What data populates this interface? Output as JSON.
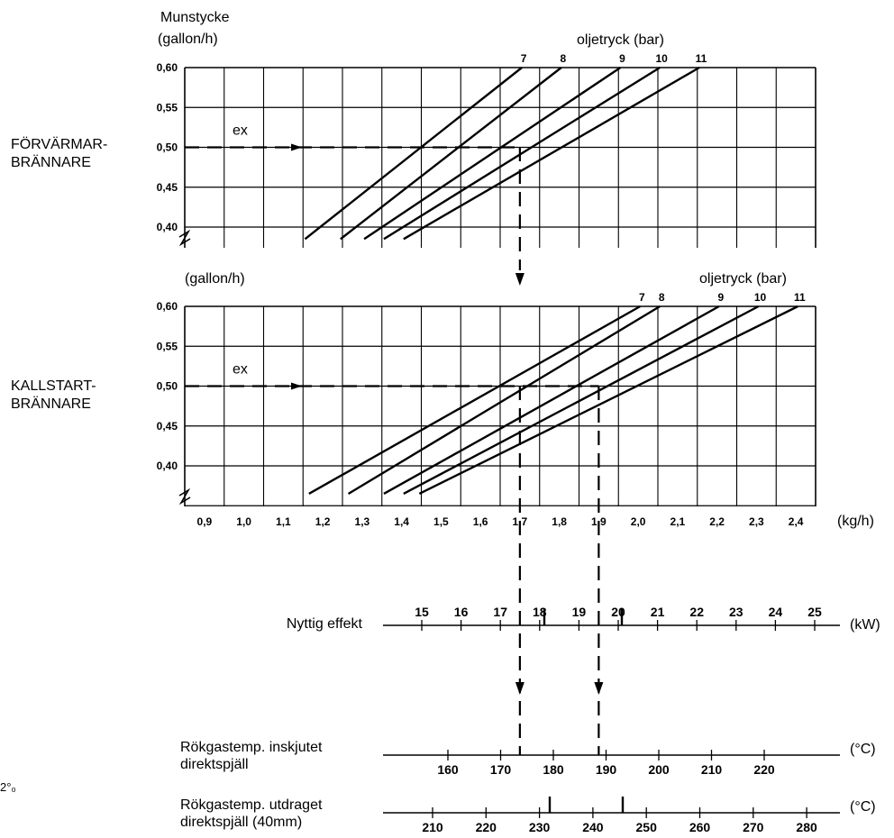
{
  "chart_data": {
    "type": "line",
    "panels": [
      {
        "id": "preheater",
        "axis_title_1": "Munstycke",
        "axis_title_2": "(gallon/h)",
        "side_label_1": "FÖRVÄRMAR-",
        "side_label_2": "BRÄNNARE",
        "pressure_title": "oljetryck (bar)",
        "ex_label": "ex",
        "yticks": [
          "0,60",
          "0,55",
          "0,50",
          "0,45",
          "0,40"
        ],
        "series": [
          {
            "name": "7",
            "x": [
              1.155,
              1.705
            ],
            "y": [
              0.385,
              0.6
            ]
          },
          {
            "name": "8",
            "x": [
              1.245,
              1.805
            ],
            "y": [
              0.385,
              0.6
            ]
          },
          {
            "name": "9",
            "x": [
              1.305,
              1.955
            ],
            "y": [
              0.385,
              0.6
            ]
          },
          {
            "name": "10",
            "x": [
              1.355,
              2.055
            ],
            "y": [
              0.385,
              0.6
            ]
          },
          {
            "name": "11",
            "x": [
              1.405,
              2.155
            ],
            "y": [
              0.385,
              0.6
            ]
          }
        ]
      },
      {
        "id": "coldstart",
        "axis_title_1": "",
        "axis_title_2": "(gallon/h)",
        "side_label_1": "KALLSTART-",
        "side_label_2": "BRÄNNARE",
        "pressure_title": "oljetryck (bar)",
        "ex_label": "ex",
        "yticks": [
          "0,60",
          "0,55",
          "0,50",
          "0,45",
          "0,40"
        ],
        "series": [
          {
            "name": "7",
            "x": [
              1.165,
              2.005
            ],
            "y": [
              0.365,
              0.6
            ]
          },
          {
            "name": "8",
            "x": [
              1.265,
              2.055
            ],
            "y": [
              0.365,
              0.6
            ]
          },
          {
            "name": "9",
            "x": [
              1.355,
              2.205
            ],
            "y": [
              0.365,
              0.6
            ]
          },
          {
            "name": "10",
            "x": [
              1.405,
              2.305
            ],
            "y": [
              0.365,
              0.6
            ]
          },
          {
            "name": "11",
            "x": [
              1.445,
              2.405
            ],
            "y": [
              0.365,
              0.6
            ]
          }
        ],
        "xticks": [
          "0,9",
          "1,0",
          "1,1",
          "1,2",
          "1,3",
          "1,4",
          "1,5",
          "1,6",
          "1,7",
          "1,8",
          "1,9",
          "2,0",
          "2,1",
          "2,2",
          "2,3",
          "2,4"
        ],
        "xunit": "(kg/h)"
      }
    ],
    "example": {
      "nozzle_gph": 0.5,
      "flow_kgh_preheater": 1.7,
      "flow_kgh_coldstart": [
        1.7,
        1.9
      ]
    },
    "scales": [
      {
        "id": "effekt",
        "label_1": "Nyttig effekt",
        "label_2": "",
        "unit": "(kW)",
        "ticks": [
          "15",
          "16",
          "17",
          "18",
          "19",
          "20",
          "21",
          "22",
          "23",
          "24",
          "25"
        ]
      },
      {
        "id": "inskjutet",
        "label_1": "Rökgastemp. inskjutet",
        "label_2": "direktspjäll",
        "unit": "(°C)",
        "ticks": [
          "160",
          "170",
          "180",
          "190",
          "200",
          "210",
          "220"
        ]
      },
      {
        "id": "utdraget",
        "label_1": "Rökgastemp. utdraget",
        "label_2": "direktspjäll (40mm)",
        "unit": "(°C)",
        "ticks": [
          "210",
          "220",
          "230",
          "240",
          "250",
          "260",
          "270",
          "280"
        ]
      }
    ],
    "grid": true
  },
  "stray_mark": "2°₀"
}
